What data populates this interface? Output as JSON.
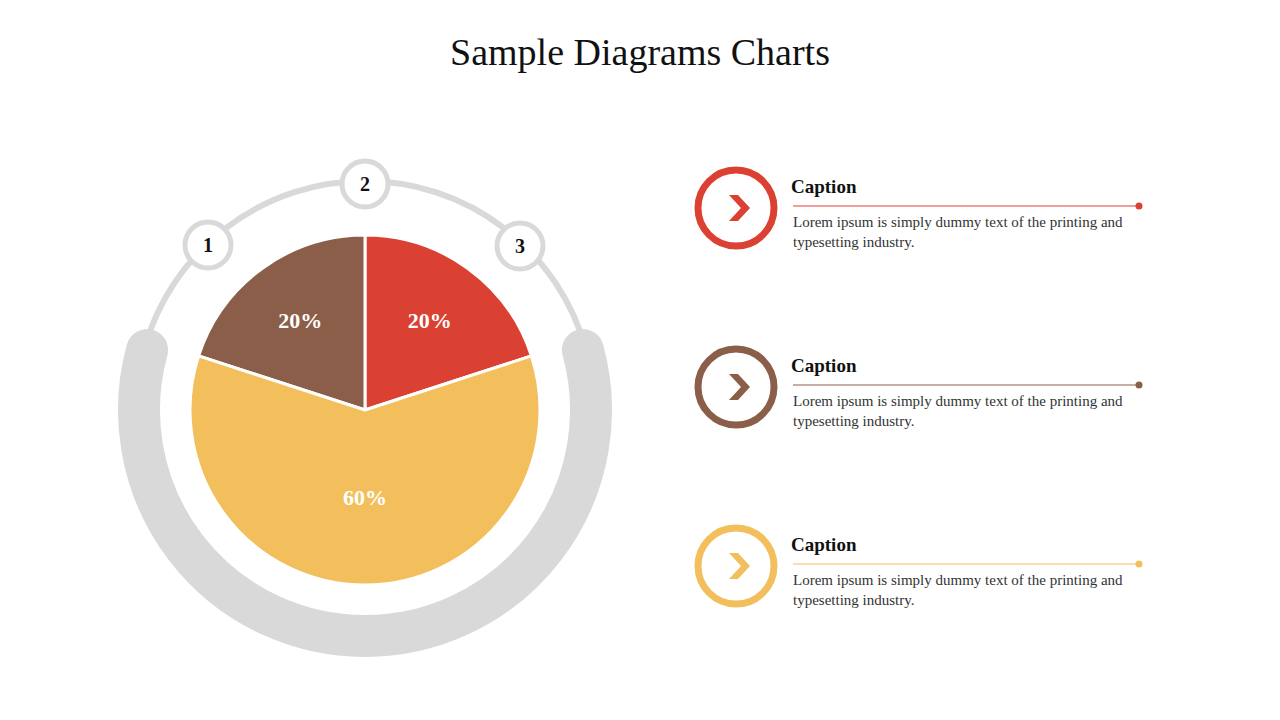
{
  "chart_data": {
    "type": "pie",
    "title": "Sample Diagrams Charts",
    "categories": [
      "1",
      "2",
      "3"
    ],
    "values": [
      20,
      20,
      60
    ],
    "value_labels": [
      "20%",
      "20%",
      "60%"
    ],
    "colors": [
      "#db4133",
      "#8b5e49",
      "#f2bf5c"
    ],
    "data_labels": true
  },
  "captions": [
    {
      "title": "Caption",
      "text": "Lorem ipsum is simply dummy text of the printing and typesetting industry."
    },
    {
      "title": "Caption",
      "text": "Lorem ipsum is simply dummy text of the printing and typesetting industry."
    },
    {
      "title": "Caption",
      "text": "Lorem ipsum is simply dummy text of the printing and typesetting industry."
    }
  ]
}
